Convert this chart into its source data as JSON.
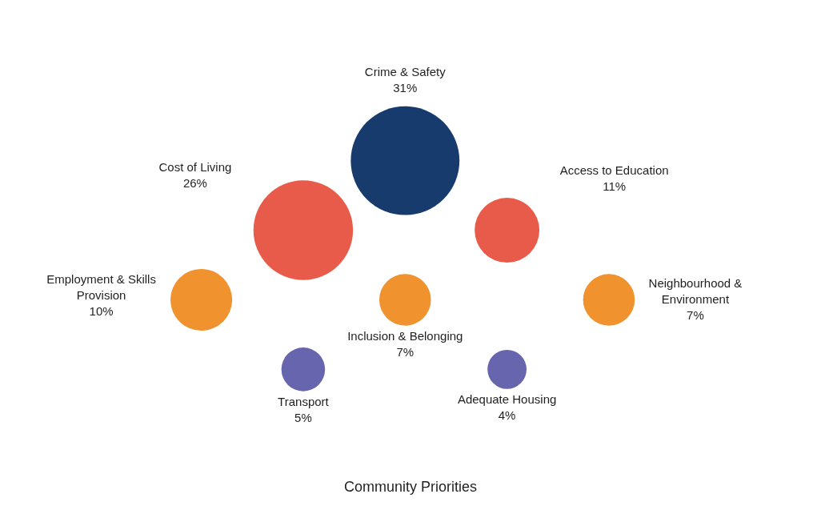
{
  "chart_data": {
    "type": "other",
    "title": "Community Priorities",
    "categories": [
      "Crime & Safety",
      "Cost of Living",
      "Access to Education",
      "Employment & Skills Provision",
      "Inclusion & Belonging",
      "Neighbourhood & Environment",
      "Transport",
      "Adequate Housing"
    ],
    "values": [
      31,
      26,
      11,
      10,
      7,
      7,
      5,
      4
    ],
    "value_labels": [
      "31%",
      "26%",
      "11%",
      "10%",
      "7%",
      "7%",
      "5%",
      "4%"
    ],
    "colors": [
      "#183b6e",
      "#e85b4a",
      "#e85b4a",
      "#f0922e",
      "#f0922e",
      "#f0922e",
      "#6765ad",
      "#6765ad"
    ]
  }
}
